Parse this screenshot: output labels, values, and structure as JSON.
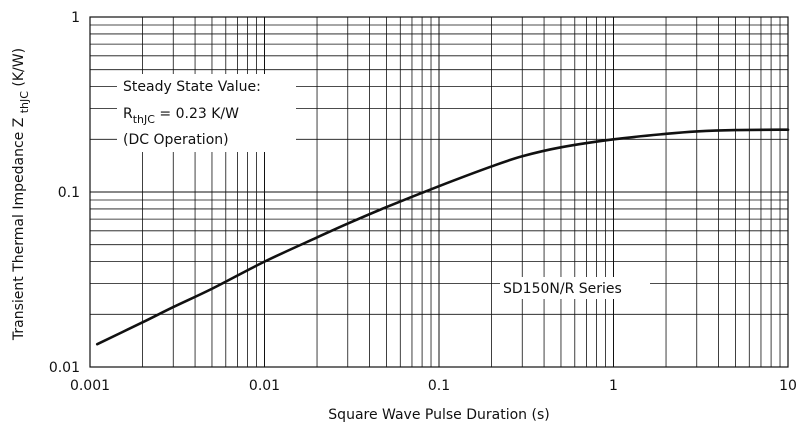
{
  "chart_data": {
    "type": "line",
    "title": "",
    "xlabel": "Square Wave Pulse Duration (s)",
    "ylabel": {
      "main": "Transient Thermal Impedance Z",
      "subscript": "thJC",
      "unit": "(K/W)"
    },
    "x_scale": "log",
    "y_scale": "log",
    "xlim": [
      0.001,
      10
    ],
    "ylim": [
      0.01,
      1
    ],
    "grid": true,
    "x_ticks": [
      {
        "value": 0.001,
        "label": "0.001"
      },
      {
        "value": 0.01,
        "label": "0.01"
      },
      {
        "value": 0.1,
        "label": "0.1"
      },
      {
        "value": 1,
        "label": "1"
      },
      {
        "value": 10,
        "label": "10"
      }
    ],
    "y_ticks": [
      {
        "value": 0.01,
        "label": "0.01"
      },
      {
        "value": 0.1,
        "label": "0.1"
      },
      {
        "value": 1,
        "label": "1"
      }
    ],
    "series": [
      {
        "x": [
          0.0011,
          0.002,
          0.003,
          0.005,
          0.01,
          0.02,
          0.03,
          0.05,
          0.1,
          0.2,
          0.3,
          0.5,
          1,
          2,
          3,
          5,
          10
        ],
        "y": [
          0.0135,
          0.018,
          0.022,
          0.028,
          0.04,
          0.055,
          0.066,
          0.082,
          0.108,
          0.14,
          0.16,
          0.18,
          0.2,
          0.215,
          0.222,
          0.226,
          0.227
        ]
      }
    ],
    "annotations": {
      "steady_state": {
        "line1": "Steady State Value:",
        "line2_main": "R",
        "line2_sub": "thJC",
        "line2_tail": " = 0.23 K/W",
        "line3": "(DC Operation)"
      },
      "series_label": "SD150N/R Series"
    }
  }
}
